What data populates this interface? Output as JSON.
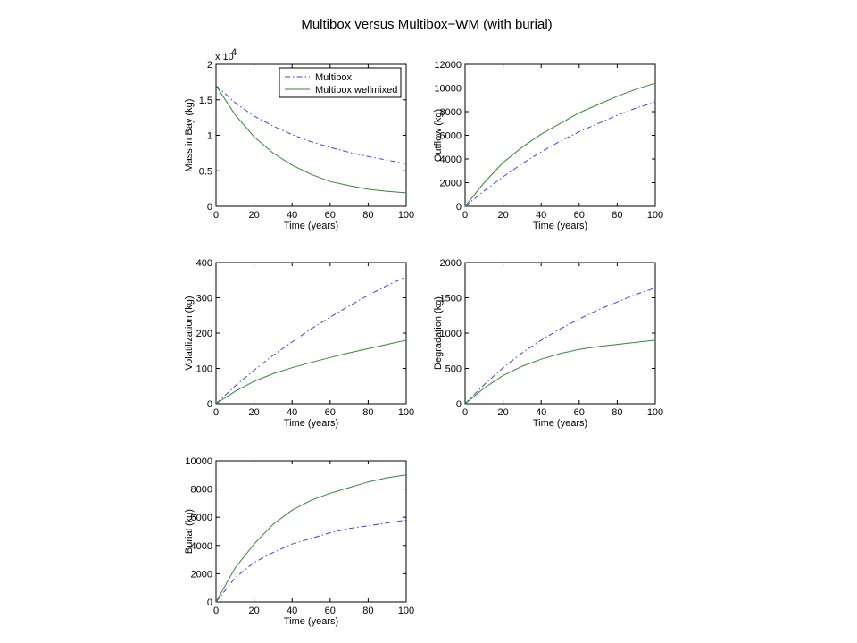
{
  "figure": {
    "title": "Multibox versus Multibox−WM (with burial)",
    "colors": {
      "multibox": "#3b3bff",
      "wellmixed": "#2e8b2e"
    }
  },
  "chart_data": [
    {
      "type": "line",
      "xlabel": "Time (years)",
      "ylabel": "Mass in Bay (kg)",
      "xlim": [
        0,
        100
      ],
      "ylim": [
        0,
        20000
      ],
      "xticks": [
        "0",
        "20",
        "40",
        "60",
        "80",
        "100"
      ],
      "yticks": [
        "0",
        "0.5",
        "1",
        "1.5",
        "2"
      ],
      "exponent_label": "x 10",
      "exponent_power": "4",
      "legend": {
        "placement": "top-right",
        "entries": [
          "Multibox",
          "Multibox wellmixed"
        ]
      },
      "x": [
        0,
        10,
        20,
        30,
        40,
        50,
        60,
        70,
        80,
        90,
        100
      ],
      "series": [
        {
          "name": "Multibox",
          "style": "dashdot",
          "values": [
            17000,
            14600,
            12700,
            11300,
            10100,
            9100,
            8300,
            7600,
            7000,
            6500,
            6000
          ]
        },
        {
          "name": "Multibox wellmixed",
          "style": "solid",
          "values": [
            17000,
            12900,
            9800,
            7500,
            5800,
            4500,
            3500,
            2900,
            2400,
            2100,
            1900
          ]
        }
      ]
    },
    {
      "type": "line",
      "xlabel": "Time (years)",
      "ylabel": "Outflow (kg)",
      "xlim": [
        0,
        100
      ],
      "ylim": [
        0,
        12000
      ],
      "xticks": [
        "0",
        "20",
        "40",
        "60",
        "80",
        "100"
      ],
      "yticks": [
        "0",
        "2000",
        "4000",
        "6000",
        "8000",
        "10000",
        "12000"
      ],
      "x": [
        0,
        10,
        20,
        30,
        40,
        50,
        60,
        70,
        80,
        90,
        100
      ],
      "series": [
        {
          "name": "Multibox",
          "style": "dashdot",
          "values": [
            0,
            1300,
            2500,
            3600,
            4600,
            5500,
            6300,
            7000,
            7700,
            8300,
            8800
          ]
        },
        {
          "name": "Multibox wellmixed",
          "style": "solid",
          "values": [
            0,
            2000,
            3700,
            5000,
            6100,
            7000,
            7900,
            8600,
            9300,
            9900,
            10400
          ]
        }
      ]
    },
    {
      "type": "line",
      "xlabel": "Time (years)",
      "ylabel": "Volatilization (kg)",
      "xlim": [
        0,
        100
      ],
      "ylim": [
        0,
        400
      ],
      "xticks": [
        "0",
        "20",
        "40",
        "60",
        "80",
        "100"
      ],
      "yticks": [
        "0",
        "100",
        "200",
        "300",
        "400"
      ],
      "x": [
        0,
        10,
        20,
        30,
        40,
        50,
        60,
        70,
        80,
        90,
        100
      ],
      "series": [
        {
          "name": "Multibox",
          "style": "dashdot",
          "values": [
            0,
            50,
            95,
            137,
            175,
            212,
            245,
            277,
            307,
            335,
            360
          ]
        },
        {
          "name": "Multibox wellmixed",
          "style": "solid",
          "values": [
            0,
            35,
            63,
            85,
            102,
            117,
            131,
            144,
            156,
            168,
            180
          ]
        }
      ]
    },
    {
      "type": "line",
      "xlabel": "Time (years)",
      "ylabel": "Degradation (kg)",
      "xlim": [
        0,
        100
      ],
      "ylim": [
        0,
        2000
      ],
      "xticks": [
        "0",
        "20",
        "40",
        "60",
        "80",
        "100"
      ],
      "yticks": [
        "0",
        "500",
        "1000",
        "1500",
        "2000"
      ],
      "x": [
        0,
        10,
        20,
        30,
        40,
        50,
        60,
        70,
        80,
        90,
        100
      ],
      "series": [
        {
          "name": "Multibox",
          "style": "dashdot",
          "values": [
            0,
            270,
            510,
            720,
            900,
            1060,
            1200,
            1330,
            1440,
            1550,
            1640
          ]
        },
        {
          "name": "Multibox wellmixed",
          "style": "solid",
          "values": [
            0,
            220,
            400,
            530,
            630,
            710,
            770,
            810,
            840,
            870,
            900
          ]
        }
      ]
    },
    {
      "type": "line",
      "xlabel": "Time (years)",
      "ylabel": "Burial (kg)",
      "xlim": [
        0,
        100
      ],
      "ylim": [
        0,
        10000
      ],
      "xticks": [
        "0",
        "20",
        "40",
        "60",
        "80",
        "100"
      ],
      "yticks": [
        "0",
        "2000",
        "4000",
        "6000",
        "8000",
        "10000"
      ],
      "x": [
        0,
        10,
        20,
        30,
        40,
        50,
        60,
        70,
        80,
        90,
        100
      ],
      "series": [
        {
          "name": "Multibox",
          "style": "dashdot",
          "values": [
            0,
            1700,
            2800,
            3500,
            4100,
            4500,
            4900,
            5200,
            5400,
            5600,
            5800
          ]
        },
        {
          "name": "Multibox wellmixed",
          "style": "solid",
          "values": [
            0,
            2400,
            4100,
            5500,
            6500,
            7200,
            7700,
            8100,
            8500,
            8800,
            9000
          ]
        }
      ]
    }
  ]
}
